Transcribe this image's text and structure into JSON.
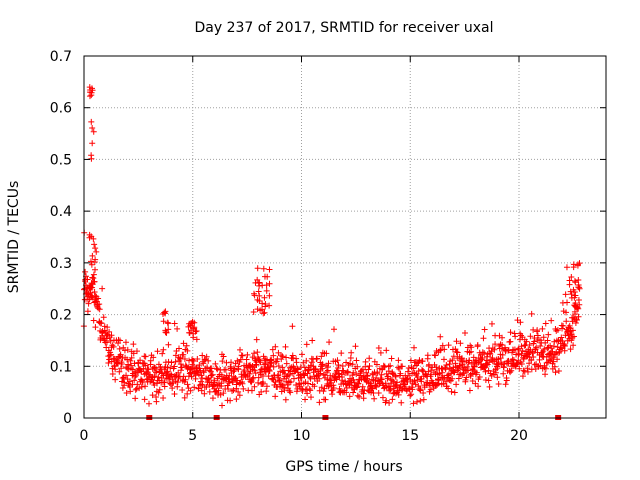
{
  "chart_data": {
    "type": "scatter",
    "title": "Day 237 of 2017, SRMTID for receiver uxal",
    "xlabel": "GPS time / hours",
    "ylabel": "SRMTID / TECUs",
    "xlim": [
      0,
      24
    ],
    "ylim": [
      0,
      0.7
    ],
    "xticks": [
      "0",
      "5",
      "10",
      "15",
      "20"
    ],
    "yticks": [
      "0",
      "0.1",
      "0.2",
      "0.3",
      "0.4",
      "0.5",
      "0.6",
      "0.7"
    ],
    "grid": true,
    "marker": "plus",
    "color": "#ff0000",
    "trend": [
      [
        0.0,
        0.23
      ],
      [
        0.3,
        0.25
      ],
      [
        0.6,
        0.21
      ],
      [
        1.0,
        0.15
      ],
      [
        1.5,
        0.11
      ],
      [
        2.0,
        0.09
      ],
      [
        3.0,
        0.08
      ],
      [
        4.0,
        0.09
      ],
      [
        5.0,
        0.09
      ],
      [
        6.0,
        0.07
      ],
      [
        7.0,
        0.08
      ],
      [
        8.0,
        0.09
      ],
      [
        9.0,
        0.09
      ],
      [
        10.0,
        0.08
      ],
      [
        11.0,
        0.08
      ],
      [
        12.0,
        0.08
      ],
      [
        13.0,
        0.07
      ],
      [
        14.0,
        0.07
      ],
      [
        15.0,
        0.07
      ],
      [
        16.0,
        0.08
      ],
      [
        17.0,
        0.1
      ],
      [
        18.0,
        0.1
      ],
      [
        19.0,
        0.11
      ],
      [
        20.0,
        0.12
      ],
      [
        21.0,
        0.13
      ],
      [
        21.5,
        0.13
      ],
      [
        22.0,
        0.15
      ],
      [
        22.5,
        0.18
      ],
      [
        22.8,
        0.2
      ]
    ],
    "spread": 0.03,
    "clusters": [
      {
        "x": [
          0.25,
          0.45
        ],
        "y": [
          0.62,
          0.645
        ]
      },
      {
        "x": [
          0.3,
          0.45
        ],
        "y": [
          0.5,
          0.58
        ]
      },
      {
        "x": [
          0.0,
          0.6
        ],
        "y": [
          0.25,
          0.36
        ]
      },
      {
        "x": [
          7.8,
          8.6
        ],
        "y": [
          0.2,
          0.29
        ]
      },
      {
        "x": [
          22.2,
          22.8
        ],
        "y": [
          0.22,
          0.3
        ]
      },
      {
        "x": [
          3.6,
          3.9
        ],
        "y": [
          0.16,
          0.21
        ]
      },
      {
        "x": [
          4.8,
          5.2
        ],
        "y": [
          0.15,
          0.19
        ]
      }
    ],
    "gaps_hours": [
      3.0,
      6.1,
      11.1,
      21.8
    ]
  }
}
